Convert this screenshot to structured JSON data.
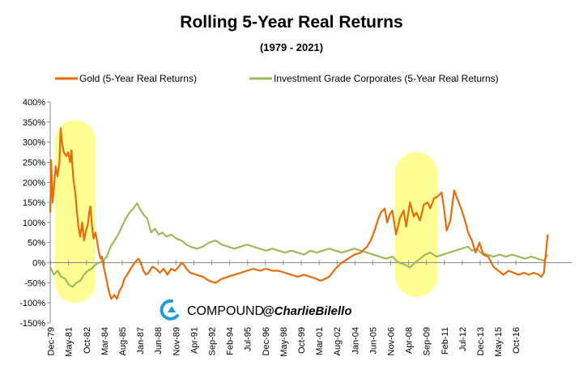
{
  "chart_data": {
    "type": "line",
    "title": "Rolling 5-Year Real Returns",
    "subtitle": "(1979 - 2021)",
    "xlabel": "",
    "ylabel": "",
    "ylim": [
      -150,
      400
    ],
    "y_ticks": [
      "400%",
      "350%",
      "300%",
      "250%",
      "200%",
      "150%",
      "100%",
      "50%",
      "0%",
      "-50%",
      "-100%",
      "-150%"
    ],
    "x_ticks": [
      "Dec-79",
      "May-81",
      "Oct-82",
      "Mar-84",
      "Aug-85",
      "Jan-87",
      "Jun-88",
      "Nov-89",
      "Apr-91",
      "Sep-92",
      "Feb-94",
      "Jul-95",
      "Dec-96",
      "May-98",
      "Oct-99",
      "Mar-01",
      "Aug-02",
      "Jan-04",
      "Jun-05",
      "Nov-06",
      "Apr-08",
      "Sep-09",
      "Feb-11",
      "Jul-12",
      "Dec-13",
      "May-15",
      "Oct-16"
    ],
    "x_range": [
      1979.92,
      2021.2
    ],
    "legend_position": "top",
    "grid": false,
    "series": [
      {
        "name": "Gold (5-Year Real Returns)",
        "color": "#E46C0A",
        "points": [
          [
            1979.92,
            125
          ],
          [
            1980.0,
            255
          ],
          [
            1980.1,
            150
          ],
          [
            1980.2,
            180
          ],
          [
            1980.35,
            240
          ],
          [
            1980.5,
            215
          ],
          [
            1980.65,
            250
          ],
          [
            1980.75,
            335
          ],
          [
            1980.85,
            300
          ],
          [
            1981.0,
            275
          ],
          [
            1981.2,
            265
          ],
          [
            1981.35,
            275
          ],
          [
            1981.5,
            250
          ],
          [
            1981.6,
            280
          ],
          [
            1981.75,
            210
          ],
          [
            1981.9,
            175
          ],
          [
            1982.0,
            140
          ],
          [
            1982.15,
            90
          ],
          [
            1982.3,
            65
          ],
          [
            1982.45,
            100
          ],
          [
            1982.6,
            55
          ],
          [
            1982.75,
            80
          ],
          [
            1982.9,
            95
          ],
          [
            1983.0,
            125
          ],
          [
            1983.1,
            140
          ],
          [
            1983.2,
            100
          ],
          [
            1983.35,
            60
          ],
          [
            1983.5,
            75
          ],
          [
            1983.6,
            60
          ],
          [
            1983.75,
            30
          ],
          [
            1983.9,
            10
          ],
          [
            1984.0,
            15
          ],
          [
            1984.15,
            -10
          ],
          [
            1984.3,
            -30
          ],
          [
            1984.45,
            -55
          ],
          [
            1984.6,
            -75
          ],
          [
            1984.75,
            -90
          ],
          [
            1985.0,
            -80
          ],
          [
            1985.2,
            -90
          ],
          [
            1985.4,
            -70
          ],
          [
            1985.6,
            -60
          ],
          [
            1985.8,
            -40
          ],
          [
            1986.0,
            -30
          ],
          [
            1986.3,
            -15
          ],
          [
            1986.6,
            0
          ],
          [
            1986.9,
            10
          ],
          [
            1987.1,
            0
          ],
          [
            1987.3,
            -20
          ],
          [
            1987.5,
            -30
          ],
          [
            1987.7,
            -25
          ],
          [
            1988.0,
            -10
          ],
          [
            1988.3,
            -15
          ],
          [
            1988.6,
            -25
          ],
          [
            1988.9,
            -15
          ],
          [
            1989.2,
            -30
          ],
          [
            1989.5,
            -15
          ],
          [
            1989.8,
            -20
          ],
          [
            1990.1,
            -10
          ],
          [
            1990.3,
            0
          ],
          [
            1990.5,
            -5
          ],
          [
            1990.7,
            -15
          ],
          [
            1991.0,
            -25
          ],
          [
            1991.5,
            -30
          ],
          [
            1992.0,
            -35
          ],
          [
            1992.5,
            -45
          ],
          [
            1993.0,
            -50
          ],
          [
            1993.5,
            -40
          ],
          [
            1994.0,
            -35
          ],
          [
            1994.5,
            -30
          ],
          [
            1995.0,
            -25
          ],
          [
            1995.5,
            -20
          ],
          [
            1996.0,
            -15
          ],
          [
            1996.5,
            -20
          ],
          [
            1997.0,
            -15
          ],
          [
            1997.5,
            -20
          ],
          [
            1998.0,
            -20
          ],
          [
            1998.5,
            -25
          ],
          [
            1999.0,
            -30
          ],
          [
            1999.5,
            -35
          ],
          [
            2000.0,
            -30
          ],
          [
            2000.5,
            -35
          ],
          [
            2001.0,
            -40
          ],
          [
            2001.3,
            -45
          ],
          [
            2001.7,
            -40
          ],
          [
            2002.0,
            -35
          ],
          [
            2002.5,
            -15
          ],
          [
            2003.0,
            0
          ],
          [
            2003.5,
            10
          ],
          [
            2004.0,
            20
          ],
          [
            2004.5,
            25
          ],
          [
            2005.0,
            40
          ],
          [
            2005.3,
            55
          ],
          [
            2005.6,
            80
          ],
          [
            2005.9,
            110
          ],
          [
            2006.1,
            125
          ],
          [
            2006.4,
            135
          ],
          [
            2006.6,
            100
          ],
          [
            2006.8,
            120
          ],
          [
            2007.0,
            130
          ],
          [
            2007.3,
            70
          ],
          [
            2007.6,
            110
          ],
          [
            2007.9,
            130
          ],
          [
            2008.1,
            90
          ],
          [
            2008.4,
            150
          ],
          [
            2008.7,
            115
          ],
          [
            2008.9,
            125
          ],
          [
            2009.2,
            105
          ],
          [
            2009.5,
            145
          ],
          [
            2009.8,
            150
          ],
          [
            2010.0,
            135
          ],
          [
            2010.3,
            160
          ],
          [
            2010.6,
            165
          ],
          [
            2010.9,
            175
          ],
          [
            2011.1,
            135
          ],
          [
            2011.3,
            80
          ],
          [
            2011.6,
            105
          ],
          [
            2011.9,
            180
          ],
          [
            2012.2,
            155
          ],
          [
            2012.5,
            130
          ],
          [
            2012.8,
            100
          ],
          [
            2013.0,
            75
          ],
          [
            2013.3,
            55
          ],
          [
            2013.6,
            25
          ],
          [
            2013.9,
            50
          ],
          [
            2014.2,
            20
          ],
          [
            2014.6,
            15
          ],
          [
            2015.0,
            -10
          ],
          [
            2015.4,
            -20
          ],
          [
            2015.8,
            -30
          ],
          [
            2016.2,
            -20
          ],
          [
            2016.6,
            -25
          ],
          [
            2017.0,
            -30
          ],
          [
            2017.4,
            -25
          ],
          [
            2017.8,
            -30
          ],
          [
            2018.2,
            -25
          ],
          [
            2018.6,
            -30
          ],
          [
            2018.8,
            -35
          ],
          [
            2019.0,
            -25
          ],
          [
            2019.3,
            70
          ]
        ]
      },
      {
        "name": "Investment Grade Corporates (5-Year Real Returns)",
        "color": "#9BBB59",
        "points": [
          [
            1979.92,
            -10
          ],
          [
            1980.2,
            -30
          ],
          [
            1980.5,
            -20
          ],
          [
            1980.8,
            -35
          ],
          [
            1981.1,
            -40
          ],
          [
            1981.4,
            -55
          ],
          [
            1981.7,
            -60
          ],
          [
            1982.0,
            -50
          ],
          [
            1982.3,
            -45
          ],
          [
            1982.6,
            -30
          ],
          [
            1982.9,
            -20
          ],
          [
            1983.2,
            -15
          ],
          [
            1983.5,
            -5
          ],
          [
            1983.8,
            0
          ],
          [
            1984.1,
            5
          ],
          [
            1984.4,
            15
          ],
          [
            1984.7,
            40
          ],
          [
            1985.0,
            55
          ],
          [
            1985.3,
            70
          ],
          [
            1985.6,
            90
          ],
          [
            1985.9,
            110
          ],
          [
            1986.2,
            125
          ],
          [
            1986.5,
            135
          ],
          [
            1986.8,
            148
          ],
          [
            1987.0,
            135
          ],
          [
            1987.3,
            120
          ],
          [
            1987.6,
            110
          ],
          [
            1987.9,
            75
          ],
          [
            1988.2,
            85
          ],
          [
            1988.5,
            70
          ],
          [
            1988.8,
            75
          ],
          [
            1989.1,
            65
          ],
          [
            1989.5,
            70
          ],
          [
            1989.9,
            60
          ],
          [
            1990.3,
            55
          ],
          [
            1990.7,
            45
          ],
          [
            1991.0,
            40
          ],
          [
            1991.5,
            35
          ],
          [
            1992.0,
            40
          ],
          [
            1992.5,
            50
          ],
          [
            1993.0,
            55
          ],
          [
            1993.5,
            45
          ],
          [
            1994.0,
            40
          ],
          [
            1994.5,
            35
          ],
          [
            1995.0,
            40
          ],
          [
            1995.5,
            45
          ],
          [
            1996.0,
            40
          ],
          [
            1996.5,
            35
          ],
          [
            1997.0,
            30
          ],
          [
            1997.5,
            35
          ],
          [
            1998.0,
            30
          ],
          [
            1998.5,
            25
          ],
          [
            1999.0,
            30
          ],
          [
            1999.5,
            25
          ],
          [
            2000.0,
            20
          ],
          [
            2000.5,
            30
          ],
          [
            2001.0,
            25
          ],
          [
            2001.5,
            30
          ],
          [
            2002.0,
            35
          ],
          [
            2002.5,
            30
          ],
          [
            2003.0,
            25
          ],
          [
            2003.5,
            30
          ],
          [
            2004.0,
            35
          ],
          [
            2004.5,
            30
          ],
          [
            2005.0,
            25
          ],
          [
            2005.5,
            20
          ],
          [
            2006.0,
            15
          ],
          [
            2006.5,
            10
          ],
          [
            2007.0,
            15
          ],
          [
            2007.5,
            0
          ],
          [
            2008.0,
            -5
          ],
          [
            2008.4,
            -12
          ],
          [
            2008.8,
            0
          ],
          [
            2009.2,
            10
          ],
          [
            2009.6,
            20
          ],
          [
            2010.0,
            25
          ],
          [
            2010.5,
            15
          ],
          [
            2011.0,
            20
          ],
          [
            2011.5,
            25
          ],
          [
            2012.0,
            30
          ],
          [
            2012.5,
            35
          ],
          [
            2013.0,
            40
          ],
          [
            2013.3,
            30
          ],
          [
            2013.7,
            35
          ],
          [
            2014.0,
            25
          ],
          [
            2014.5,
            20
          ],
          [
            2015.0,
            15
          ],
          [
            2015.5,
            20
          ],
          [
            2016.0,
            15
          ],
          [
            2016.5,
            20
          ],
          [
            2017.0,
            15
          ],
          [
            2017.5,
            10
          ],
          [
            2018.0,
            15
          ],
          [
            2018.5,
            10
          ],
          [
            2019.0,
            5
          ],
          [
            2019.3,
            20
          ]
        ]
      }
    ],
    "highlights": [
      {
        "x_start": 1980.3,
        "x_end": 1983.5,
        "y_top": 355,
        "y_bottom": -100,
        "color": "#FFFF80"
      },
      {
        "x_start": 2007.2,
        "x_end": 2010.6,
        "y_top": 275,
        "y_bottom": -85,
        "color": "#FFFF80"
      }
    ]
  },
  "branding": {
    "logo_icon": "compound-logo-icon",
    "company": "COMPOUND",
    "handle": "@CharlieBilello",
    "logo_color": "#1F9BD7"
  }
}
